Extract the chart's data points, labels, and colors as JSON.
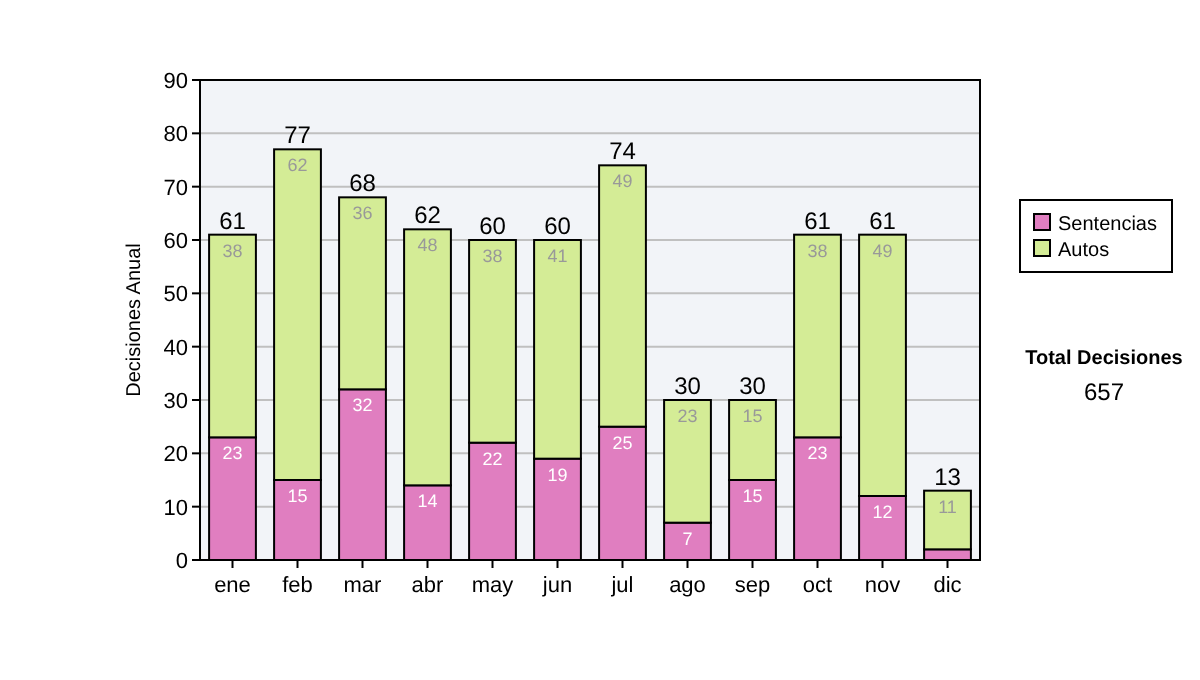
{
  "chart_data": {
    "type": "bar",
    "stacked": true,
    "ylabel": "Decisiones Anual",
    "categories": [
      "ene",
      "feb",
      "mar",
      "abr",
      "may",
      "jun",
      "jul",
      "ago",
      "sep",
      "oct",
      "nov",
      "dic"
    ],
    "series": [
      {
        "name": "Sentencias",
        "color": "#e07ec0",
        "values": [
          23,
          15,
          32,
          14,
          22,
          19,
          25,
          7,
          15,
          23,
          12,
          2
        ],
        "value_labels": [
          "23",
          "15",
          "32",
          "14",
          "22",
          "19",
          "25",
          "7",
          "15",
          "23",
          "12",
          null
        ]
      },
      {
        "name": "Autos",
        "color": "#d4ec96",
        "values": [
          38,
          62,
          36,
          48,
          38,
          41,
          49,
          23,
          15,
          38,
          49,
          11
        ],
        "value_labels": [
          "38",
          "62",
          "36",
          "48",
          "38",
          "41",
          "49",
          "23",
          "15",
          "38",
          "49",
          "11"
        ]
      }
    ],
    "totals": [
      "61",
      "77",
      "68",
      "62",
      "60",
      "60",
      "74",
      "30",
      "30",
      "61",
      "61",
      "13"
    ],
    "ylim": [
      0,
      90
    ],
    "yticks": [
      0,
      10,
      20,
      30,
      40,
      50,
      60,
      70,
      80,
      90
    ],
    "grid": "y",
    "legend": "right",
    "annotations": [
      "Total Decisiones",
      "657"
    ]
  }
}
